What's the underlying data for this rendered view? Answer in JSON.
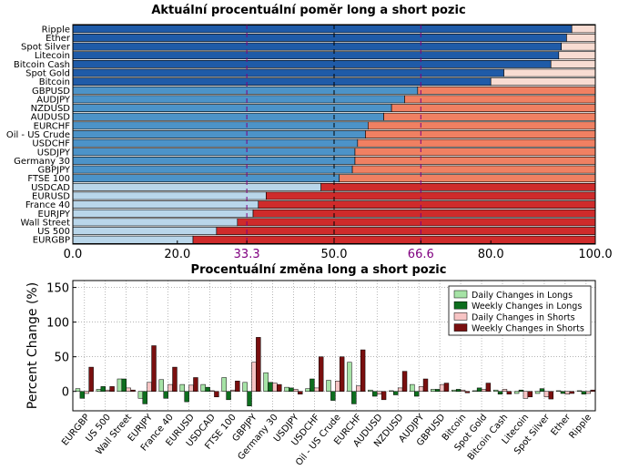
{
  "chart_data": [
    {
      "type": "bar",
      "orientation": "horizontal",
      "stacked": true,
      "title": "Aktuální procentuální poměr long a short pozic",
      "categories": [
        "Ripple",
        "Ether",
        "Spot Silver",
        "Litecoin",
        "Bitcoin Cash",
        "Spot Gold",
        "Bitcoin",
        "GBPUSD",
        "AUDJPY",
        "NZDUSD",
        "AUDUSD",
        "EURCHF",
        "Oil - US Crude",
        "USDCHF",
        "USDJPY",
        "Germany 30",
        "GBPJPY",
        "FTSE 100",
        "USDCAD",
        "EURUSD",
        "France 40",
        "EURJPY",
        "Wall Street",
        "US 500",
        "EURGBP"
      ],
      "long_values": [
        95.5,
        94.5,
        93.5,
        93.0,
        91.5,
        82.5,
        80.0,
        66.0,
        63.5,
        61.0,
        59.5,
        56.5,
        56.0,
        54.5,
        54.0,
        54.0,
        53.5,
        51.0,
        47.5,
        37.0,
        35.5,
        34.5,
        31.5,
        27.5,
        23.0
      ],
      "xlim": [
        0,
        100
      ],
      "xticks": [
        "0.0",
        "20.0",
        "33.3",
        "50.0",
        "66.6",
        "80.0",
        "100.0"
      ],
      "reference_lines": [
        33.3,
        50.0,
        66.6
      ],
      "colors": {
        "long_dark": "#1f5ba8",
        "long_mid": "#4c93c8",
        "long_light": "#b9d6ea",
        "short_dark": "#cf2b2b",
        "short_mid": "#f08062",
        "short_light": "#f8dcd2",
        "reference_purple": "#800080"
      }
    },
    {
      "type": "bar",
      "title": "Procentuální změna long a short pozic",
      "ylabel": "Percent Change (%)",
      "ylim": [
        -28,
        160
      ],
      "yticks": [
        0,
        50,
        100,
        150
      ],
      "categories": [
        "EURGBP",
        "US 500",
        "Wall Street",
        "EURJPY",
        "France 40",
        "EURUSD",
        "USDCAD",
        "FTSE 100",
        "GBPJPY",
        "Germany 30",
        "USDJPY",
        "USDCHF",
        "Oil - US Crude",
        "EURCHF",
        "AUDUSD",
        "NZDUSD",
        "AUDJPY",
        "GBPUSD",
        "Bitcoin",
        "Spot Gold",
        "Bitcoin Cash",
        "Litecoin",
        "Spot Silver",
        "Ether",
        "Ripple"
      ],
      "series": [
        {
          "name": "Daily Changes in Longs",
          "color": "#a6e3a6",
          "values": [
            4,
            3,
            18,
            -10,
            17,
            10,
            10,
            20,
            13,
            27,
            6,
            4,
            16,
            42,
            2,
            1,
            10,
            3,
            2,
            1,
            2,
            -3,
            -3,
            1,
            1
          ]
        },
        {
          "name": "Weekly Changes in Longs",
          "color": "#0d6e1e",
          "values": [
            -10,
            7,
            18,
            -18,
            -10,
            -15,
            6,
            -12,
            -21,
            13,
            5,
            18,
            -13,
            -18,
            -7,
            -5,
            -7,
            3,
            3,
            5,
            -4,
            2,
            4,
            -3,
            -4
          ]
        },
        {
          "name": "Daily Changes in Shorts",
          "color": "#f7c4c4",
          "values": [
            -3,
            2,
            5,
            13,
            10,
            9,
            1,
            2,
            42,
            12,
            3,
            5,
            15,
            8,
            -4,
            5,
            7,
            10,
            2,
            3,
            3,
            -10,
            -8,
            -4,
            -3
          ]
        },
        {
          "name": "Weekly Changes in Shorts",
          "color": "#7a0f0f",
          "values": [
            35,
            7,
            2,
            66,
            35,
            20,
            -8,
            15,
            78,
            10,
            -4,
            50,
            50,
            60,
            -12,
            29,
            18,
            12,
            -2,
            12,
            -4,
            -8,
            -11,
            -3,
            2
          ]
        }
      ],
      "legend_position": "top-right",
      "grid": true
    }
  ]
}
